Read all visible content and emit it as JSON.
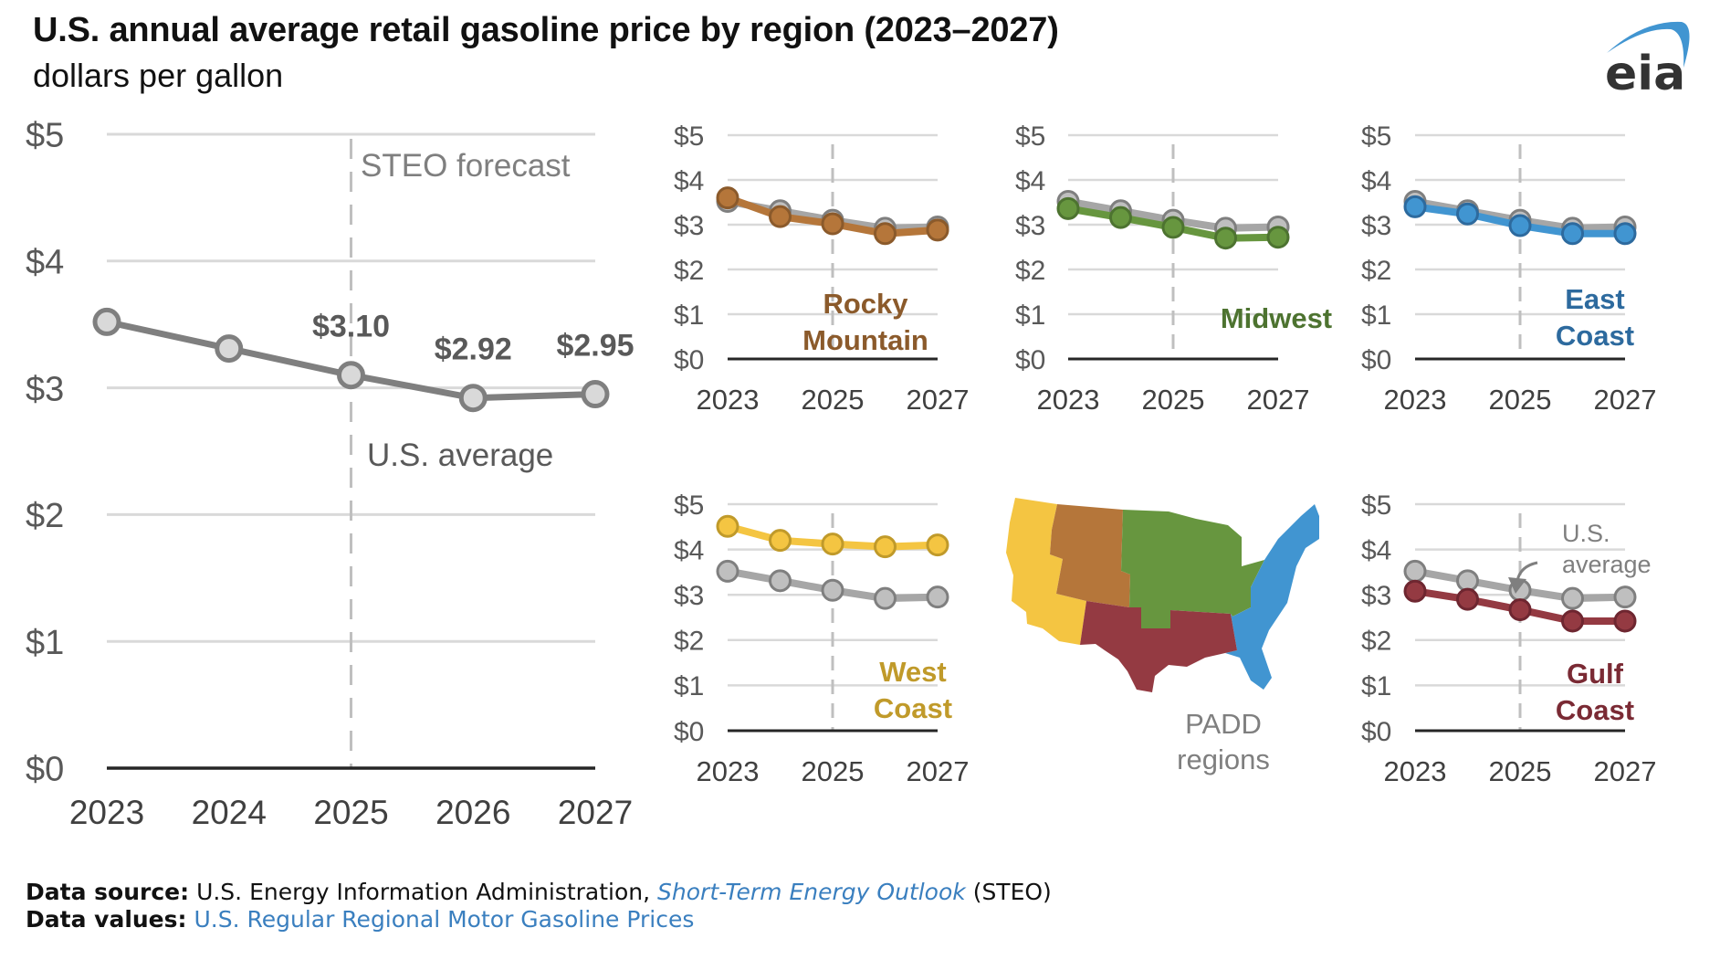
{
  "header": {
    "title": "U.S. annual average retail gasoline price by region (2023–2027)",
    "subtitle": "dollars per gallon",
    "logo_text": "eia"
  },
  "footer": {
    "source_label": "Data source:",
    "source_text": "U.S. Energy Information Administration,",
    "source_link": "Short-Term Energy Outlook",
    "source_suffix": "(STEO)",
    "values_label": "Data values:",
    "values_link": "U.S. Regular Regional Motor Gasoline Prices"
  },
  "map": {
    "label_line1": "PADD",
    "label_line2": "regions"
  },
  "colors": {
    "us_average": "#7f7f7f",
    "us_marker_fill": "#d9d9d9",
    "rocky_mountain": "#b5763a",
    "midwest": "#67963f",
    "east_coast": "#4195d1",
    "west_coast": "#f4c542",
    "gulf_coast": "#943a42"
  },
  "chart_data": [
    {
      "type": "line",
      "id": "us",
      "title": "U.S. average",
      "annotation": "STEO forecast",
      "forecast_start": 2025,
      "x": [
        2023,
        2024,
        2025,
        2026,
        2027
      ],
      "xticks": [
        "2023",
        "2024",
        "2025",
        "2026",
        "2027"
      ],
      "yticks": [
        "$0",
        "$1",
        "$2",
        "$3",
        "$4",
        "$5"
      ],
      "ylim": [
        0,
        5
      ],
      "grid": true,
      "series": [
        {
          "name": "U.S. average",
          "values": [
            3.52,
            3.31,
            3.1,
            2.92,
            2.95
          ],
          "labels": [
            "",
            "",
            "$3.10",
            "$2.92",
            "$2.95"
          ]
        }
      ]
    },
    {
      "type": "line",
      "id": "rocky",
      "title": "Rocky Mountain",
      "title_lines": [
        "Rocky",
        "Mountain"
      ],
      "x": [
        2023,
        2024,
        2025,
        2026,
        2027
      ],
      "xticks": [
        "2023",
        "2025",
        "2027"
      ],
      "yticks": [
        "$0",
        "$1",
        "$2",
        "$3",
        "$4",
        "$5"
      ],
      "ylim": [
        0,
        5
      ],
      "grid": true,
      "series": [
        {
          "name": "U.S. average",
          "values": [
            3.52,
            3.31,
            3.1,
            2.92,
            2.95
          ]
        },
        {
          "name": "Rocky Mountain",
          "values": [
            3.6,
            3.18,
            3.02,
            2.8,
            2.88
          ]
        }
      ]
    },
    {
      "type": "line",
      "id": "midwest",
      "title": "Midwest",
      "title_lines": [
        "Midwest"
      ],
      "x": [
        2023,
        2024,
        2025,
        2026,
        2027
      ],
      "xticks": [
        "2023",
        "2025",
        "2027"
      ],
      "yticks": [
        "$0",
        "$1",
        "$2",
        "$3",
        "$4",
        "$5"
      ],
      "ylim": [
        0,
        5
      ],
      "grid": true,
      "series": [
        {
          "name": "U.S. average",
          "values": [
            3.52,
            3.31,
            3.1,
            2.92,
            2.95
          ]
        },
        {
          "name": "Midwest",
          "values": [
            3.36,
            3.16,
            2.94,
            2.7,
            2.72
          ]
        }
      ]
    },
    {
      "type": "line",
      "id": "east",
      "title": "East Coast",
      "title_lines": [
        "East",
        "Coast"
      ],
      "x": [
        2023,
        2024,
        2025,
        2026,
        2027
      ],
      "xticks": [
        "2023",
        "2025",
        "2027"
      ],
      "yticks": [
        "$0",
        "$1",
        "$2",
        "$3",
        "$4",
        "$5"
      ],
      "ylim": [
        0,
        5
      ],
      "grid": true,
      "series": [
        {
          "name": "U.S. average",
          "values": [
            3.52,
            3.31,
            3.1,
            2.92,
            2.95
          ]
        },
        {
          "name": "East Coast",
          "values": [
            3.4,
            3.24,
            2.98,
            2.8,
            2.8
          ]
        }
      ]
    },
    {
      "type": "line",
      "id": "west",
      "title": "West Coast",
      "title_lines": [
        "West",
        "Coast"
      ],
      "x": [
        2023,
        2024,
        2025,
        2026,
        2027
      ],
      "xticks": [
        "2023",
        "2025",
        "2027"
      ],
      "yticks": [
        "$0",
        "$1",
        "$2",
        "$3",
        "$4",
        "$5"
      ],
      "ylim": [
        0,
        5
      ],
      "grid": true,
      "series": [
        {
          "name": "U.S. average",
          "values": [
            3.52,
            3.31,
            3.1,
            2.92,
            2.95
          ]
        },
        {
          "name": "West Coast",
          "values": [
            4.51,
            4.2,
            4.12,
            4.06,
            4.1
          ]
        }
      ]
    },
    {
      "type": "line",
      "id": "gulf",
      "title": "Gulf Coast",
      "title_lines": [
        "Gulf",
        "Coast"
      ],
      "annotation_lines": [
        "U.S.",
        "average"
      ],
      "x": [
        2023,
        2024,
        2025,
        2026,
        2027
      ],
      "xticks": [
        "2023",
        "2025",
        "2027"
      ],
      "yticks": [
        "$0",
        "$1",
        "$2",
        "$3",
        "$4",
        "$5"
      ],
      "ylim": [
        0,
        5
      ],
      "grid": true,
      "series": [
        {
          "name": "U.S. average",
          "values": [
            3.52,
            3.31,
            3.1,
            2.92,
            2.95
          ]
        },
        {
          "name": "Gulf Coast",
          "values": [
            3.08,
            2.9,
            2.67,
            2.42,
            2.42
          ]
        }
      ]
    }
  ]
}
